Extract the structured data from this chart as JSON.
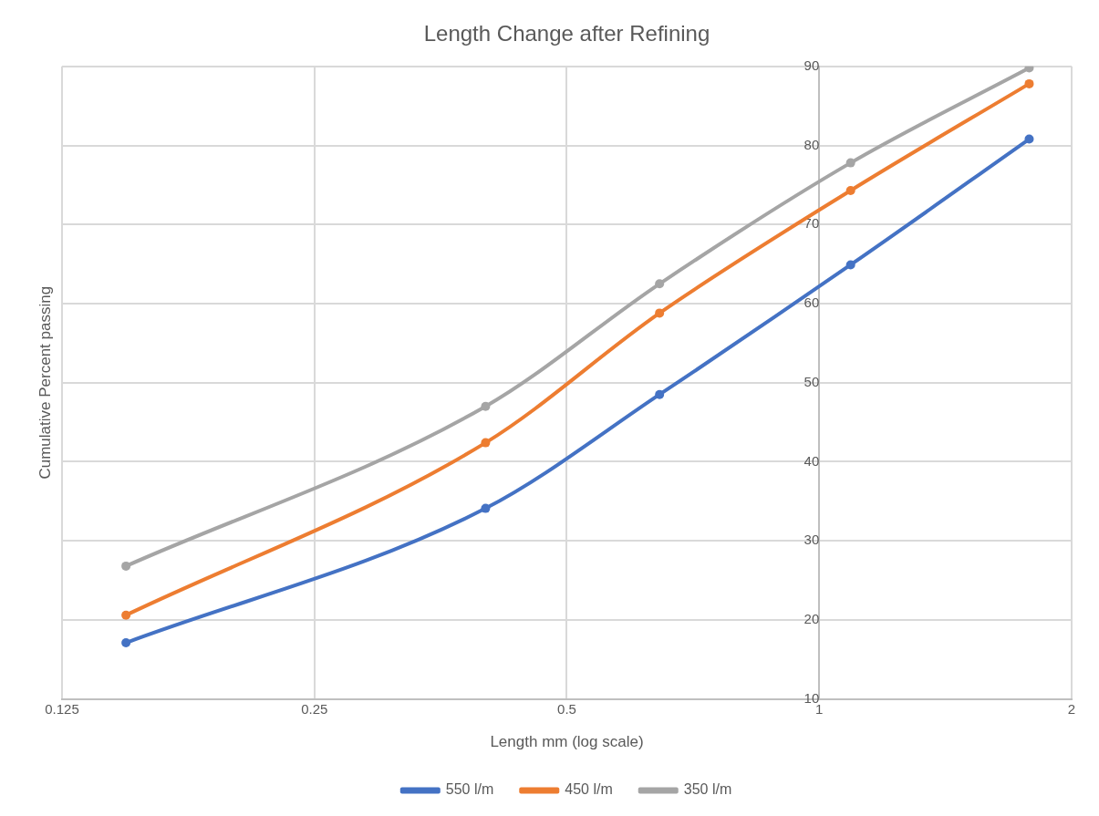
{
  "chart_data": {
    "type": "line",
    "title": "Length Change after Refining",
    "xlabel": "Length mm (log scale)",
    "ylabel": "Cumulative Percent passing",
    "x": [
      0.149,
      0.4,
      0.645,
      1.09,
      1.78
    ],
    "series": [
      {
        "name": "550 l/m",
        "color": "#4472c4",
        "values": [
          17.1,
          34.1,
          48.5,
          64.9,
          80.8
        ]
      },
      {
        "name": "450 l/m",
        "color": "#ed7d31",
        "values": [
          20.6,
          42.4,
          58.8,
          74.3,
          87.8
        ]
      },
      {
        "name": "350 l/m",
        "color": "#a5a5a5",
        "values": [
          26.8,
          47.0,
          62.5,
          77.8,
          89.8
        ]
      }
    ],
    "log": "x",
    "xlim": [
      0.125,
      2
    ],
    "xticks": [
      0.125,
      0.25,
      0.5,
      1,
      2
    ],
    "ylim": [
      10,
      90
    ],
    "yticks": [
      10,
      20,
      30,
      40,
      50,
      60,
      70,
      80,
      90
    ],
    "grid": true,
    "legend": "bottom",
    "marker": "circle",
    "line_style": "solid"
  }
}
